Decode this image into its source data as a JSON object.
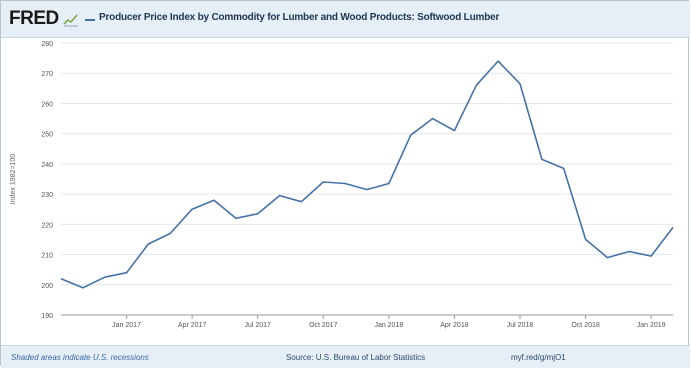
{
  "header": {
    "logo_text": "FRED",
    "chart_title": "Producer Price Index by Commodity for Lumber and Wood Products: Softwood Lumber"
  },
  "footer": {
    "recession_note": "Shaded areas indicate U.S. recessions",
    "source": "Source: U.S. Bureau of Labor Statistics",
    "short_link": "myf.red/g/mjO1"
  },
  "colors": {
    "line": "#4572a7",
    "header_bg": "#e6eef6",
    "grid": "#e3e8ee"
  },
  "chart_data": {
    "type": "line",
    "title": "Producer Price Index by Commodity for Lumber and Wood Products: Softwood Lumber",
    "ylabel": "Index 1982=100",
    "xlabel": "",
    "ylim": [
      190,
      280
    ],
    "yticks": [
      190,
      200,
      210,
      220,
      230,
      240,
      250,
      260,
      270,
      280
    ],
    "xticks": [
      "Jan 2017",
      "Apr 2017",
      "Jul 2017",
      "Oct 2017",
      "Jan 2018",
      "Apr 2018",
      "Jul 2018",
      "Oct 2018",
      "Jan 2019"
    ],
    "grid": true,
    "series": [
      {
        "x": [
          "2016-10",
          "2016-11",
          "2016-12",
          "2017-01",
          "2017-02",
          "2017-03",
          "2017-04",
          "2017-05",
          "2017-06",
          "2017-07",
          "2017-08",
          "2017-09",
          "2017-10",
          "2017-11",
          "2017-12",
          "2018-01",
          "2018-02",
          "2018-03",
          "2018-04",
          "2018-05",
          "2018-06",
          "2018-07",
          "2018-08",
          "2018-09",
          "2018-10",
          "2018-11",
          "2018-12",
          "2019-01",
          "2019-02"
        ],
        "values": [
          202,
          199,
          202.5,
          204,
          213.5,
          217,
          225,
          228,
          222,
          223.5,
          229.5,
          227.5,
          234,
          233.5,
          231.5,
          233.5,
          249.5,
          255,
          251,
          266,
          274,
          266.5,
          241.5,
          238.5,
          215,
          209,
          211,
          209.5,
          219
        ]
      }
    ]
  }
}
